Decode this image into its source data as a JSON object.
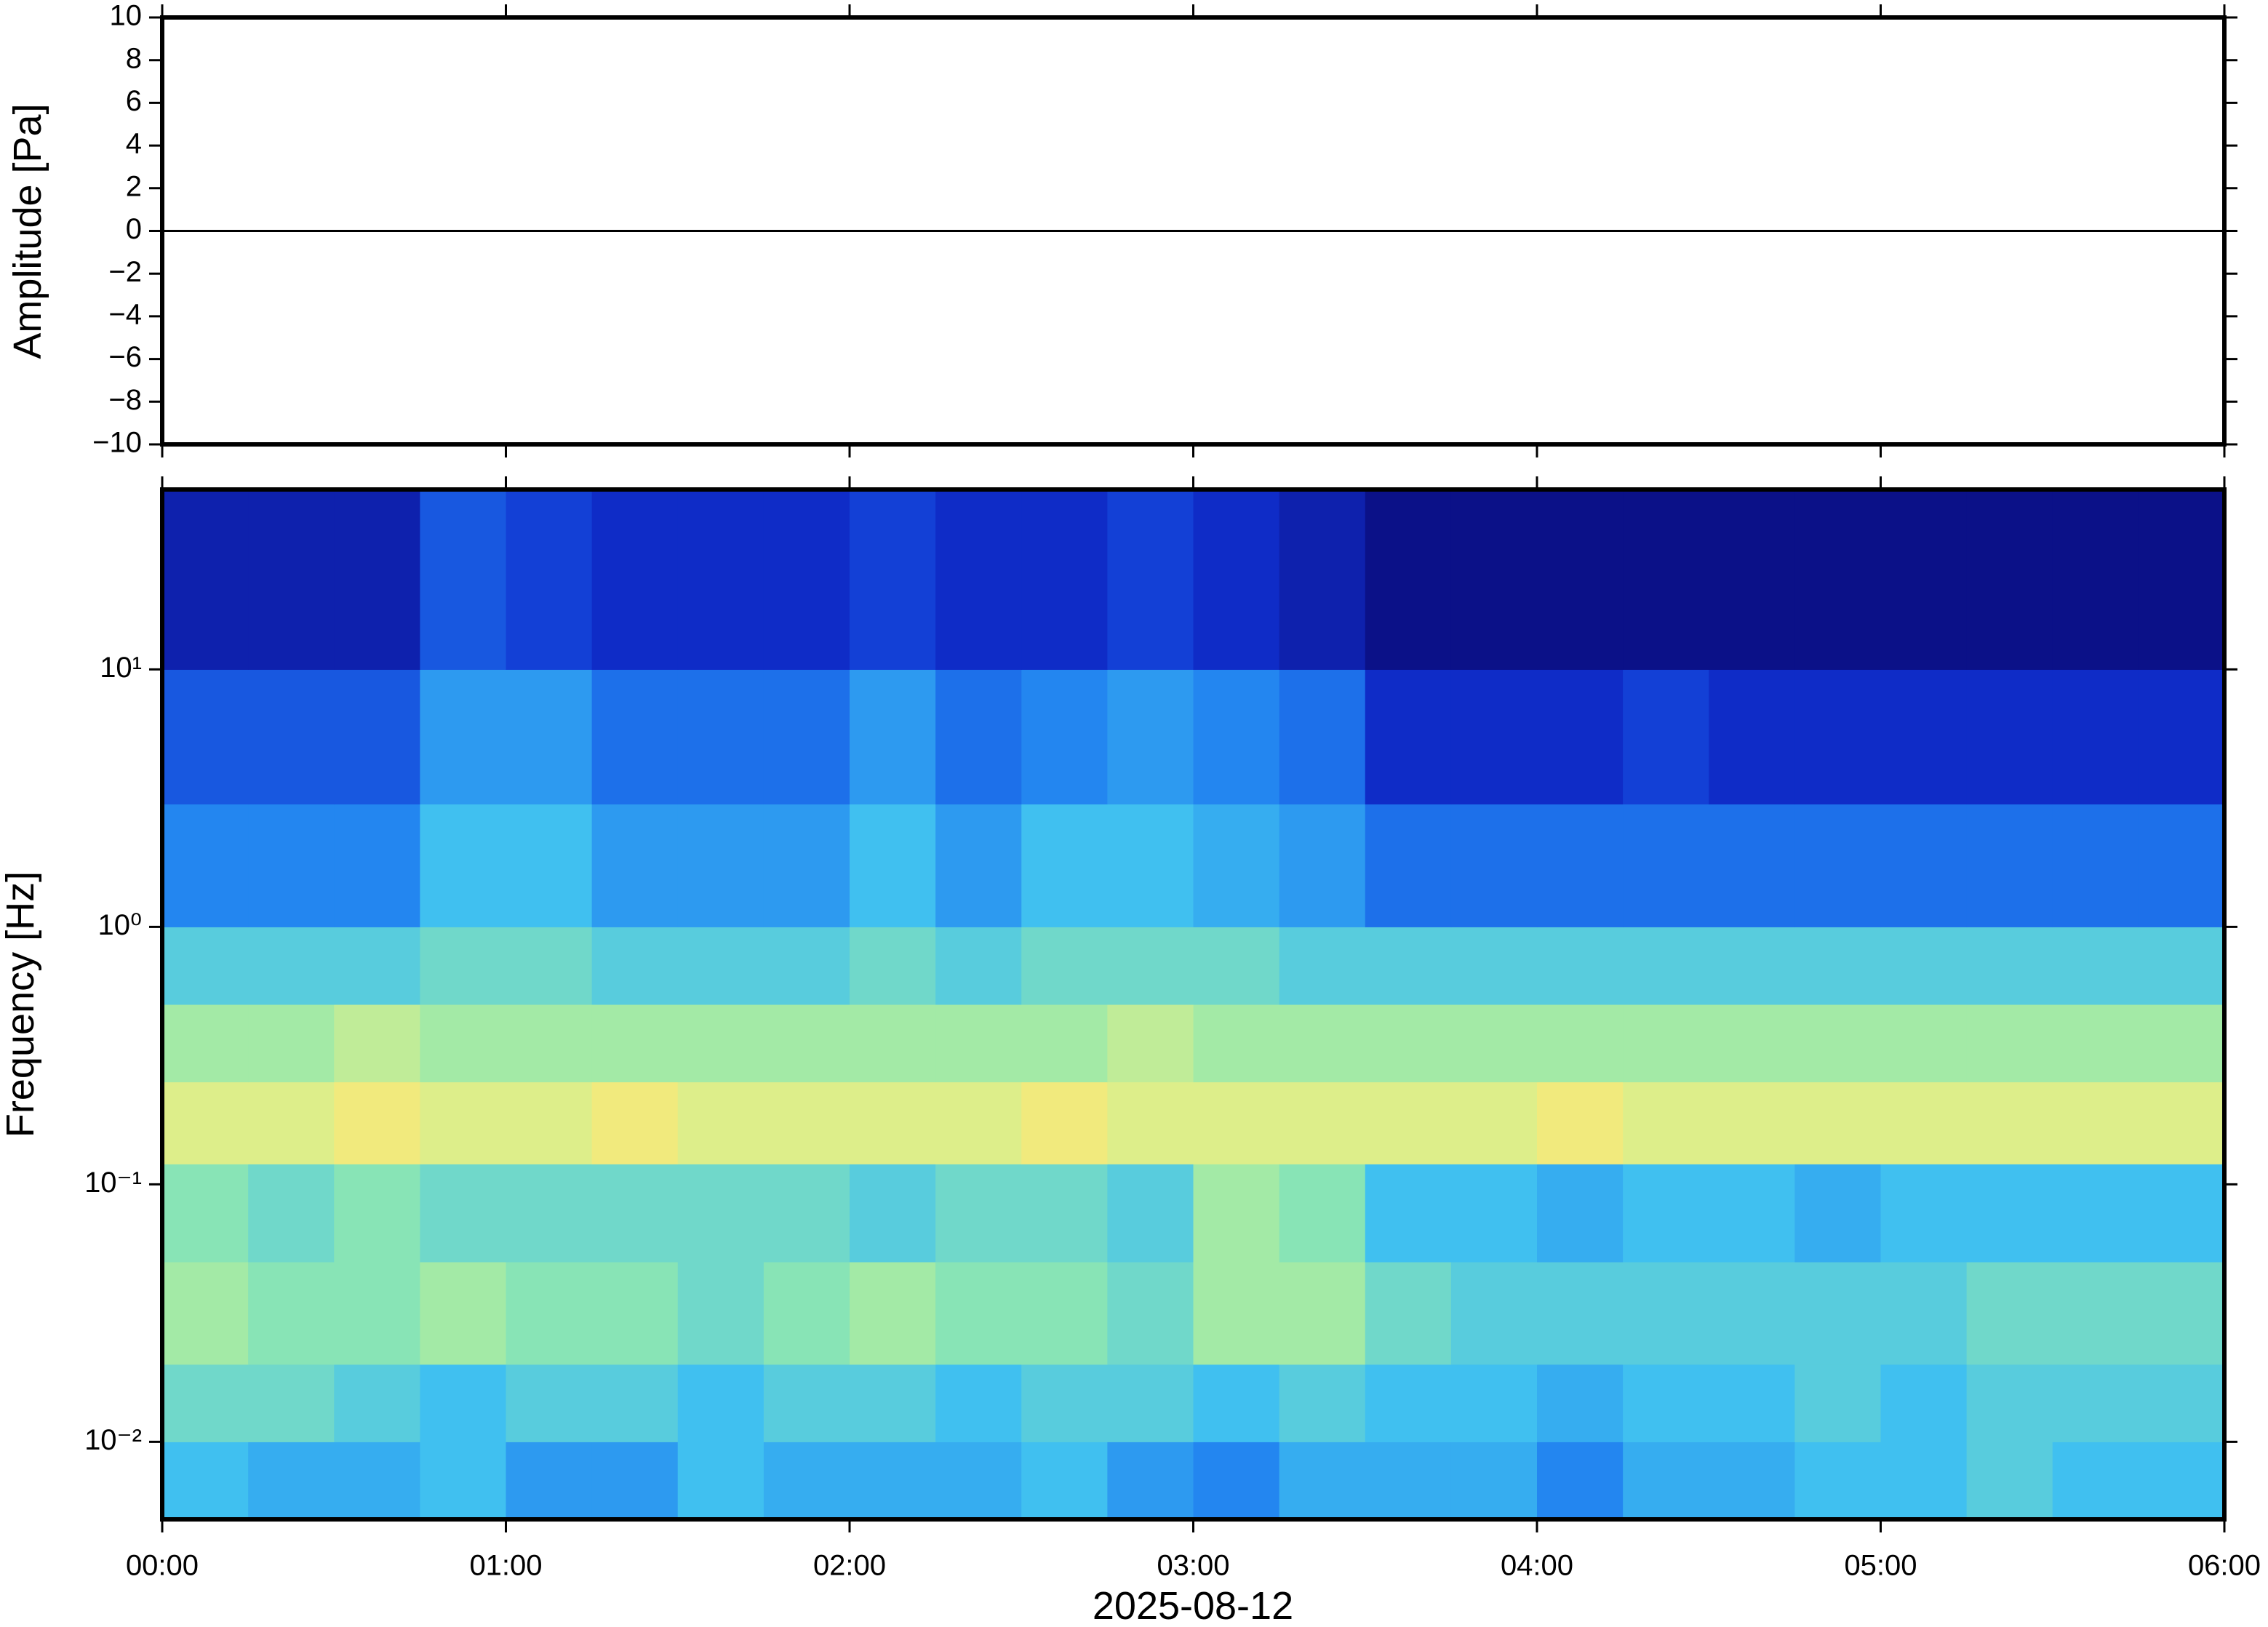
{
  "chart_data": [
    {
      "type": "line",
      "ylabel": "Amplitude [Pa]",
      "xlim": [
        0,
        360
      ],
      "xticks": [
        0,
        60,
        120,
        180,
        240,
        300,
        360
      ],
      "ylim": [
        -10,
        10
      ],
      "yticks": [
        {
          "value": -10,
          "label": "−10"
        },
        {
          "value": -8,
          "label": "−8"
        },
        {
          "value": -6,
          "label": "−6"
        },
        {
          "value": -4,
          "label": "−4"
        },
        {
          "value": -2,
          "label": "−2"
        },
        0,
        2,
        4,
        6,
        8,
        10
      ],
      "series": [
        {
          "color": "#000000",
          "x": [
            0,
            30,
            60,
            90,
            120,
            150,
            180,
            210,
            240,
            270,
            300,
            330,
            360
          ],
          "values": [
            0,
            0,
            0,
            0,
            0,
            0,
            0,
            0,
            0,
            0,
            0,
            0,
            0
          ]
        }
      ]
    },
    {
      "type": "heatmap",
      "ylabel": "Frequency [Hz]",
      "xlabel": "2025-08-12",
      "xlim": [
        0,
        360
      ],
      "xticks": [
        {
          "value": 0,
          "label": "00:00"
        },
        {
          "value": 60,
          "label": "01:00"
        },
        {
          "value": 120,
          "label": "02:00"
        },
        {
          "value": 180,
          "label": "03:00"
        },
        {
          "value": 240,
          "label": "04:00"
        },
        {
          "value": 300,
          "label": "05:00"
        },
        {
          "value": 360,
          "label": "06:00"
        }
      ],
      "ylim": [
        0.005,
        50
      ],
      "yscale": "log",
      "yticks": [
        {
          "value": 0.01,
          "label": "10⁻²"
        },
        {
          "value": 0.1,
          "label": "10⁻¹"
        },
        {
          "value": 1,
          "label": "10⁰"
        },
        {
          "value": 10,
          "label": "10¹"
        }
      ],
      "x_bins": [
        0,
        15,
        30,
        45,
        60,
        75,
        90,
        105,
        120,
        135,
        150,
        165,
        180,
        195,
        210,
        225,
        240,
        255,
        270,
        285,
        300,
        315,
        330,
        345,
        360
      ],
      "y_bins": [
        0.005,
        0.01,
        0.02,
        0.05,
        0.12,
        0.25,
        0.5,
        1,
        3,
        10,
        50
      ],
      "clim": [
        0,
        10
      ],
      "colormap": [
        "#0a0a78",
        "#1030d0",
        "#2080f0",
        "#40c0f0",
        "#90e8b0",
        "#f0f080",
        "#f8b060"
      ],
      "values": [
        [
          5,
          4.5,
          4.5,
          5,
          4,
          4,
          5,
          4.5,
          4.5,
          4.5,
          5,
          4,
          3.5,
          4.5,
          4.5,
          4.5,
          3.5,
          4.5,
          4.5,
          5,
          5,
          5.5,
          5,
          5
        ],
        [
          6,
          6,
          5.5,
          5,
          5.5,
          5.5,
          5,
          5.5,
          5.5,
          5,
          5.5,
          5.5,
          5,
          5.5,
          5,
          5,
          4.5,
          5,
          5,
          5.5,
          5,
          5.5,
          5.5,
          5.5
        ],
        [
          7,
          6.5,
          6.5,
          7,
          6.5,
          6.5,
          6,
          6.5,
          7,
          6.5,
          6.5,
          6,
          7,
          7,
          6,
          5.5,
          5.5,
          5.5,
          5.5,
          5.5,
          5.5,
          6,
          6,
          6
        ],
        [
          6.5,
          6,
          6.5,
          6,
          6,
          6,
          6,
          6,
          5.5,
          6,
          6,
          5.5,
          7,
          6.5,
          5,
          5,
          4.5,
          5,
          5,
          4.5,
          5,
          5,
          5,
          5
        ],
        [
          8,
          8,
          8.5,
          8,
          8,
          8.5,
          8,
          8,
          8,
          8,
          8.5,
          8,
          8,
          8,
          8,
          8,
          8.5,
          8,
          8,
          8,
          8,
          8,
          8,
          8
        ],
        [
          7,
          7,
          7.5,
          7,
          7,
          7,
          7,
          7,
          7,
          7,
          7,
          7.5,
          7,
          7,
          7,
          7,
          7,
          7,
          7,
          7,
          7,
          7,
          7,
          7
        ],
        [
          5.5,
          5.5,
          5.5,
          6,
          6,
          5.5,
          5.5,
          5.5,
          6,
          5.5,
          6,
          6,
          6,
          5.5,
          5.5,
          5.5,
          5.5,
          5.5,
          5.5,
          5.5,
          5.5,
          5.5,
          5.5,
          5.5
        ],
        [
          3.5,
          3.5,
          3.5,
          5,
          5,
          4,
          4,
          4,
          5,
          4,
          5,
          5,
          4.5,
          4,
          3,
          3,
          3,
          3,
          3,
          3,
          3,
          3,
          3,
          3
        ],
        [
          2.5,
          2.5,
          2.5,
          4,
          4,
          3,
          3,
          3,
          4,
          3,
          3.5,
          4,
          3.5,
          3,
          1.5,
          1.5,
          1.5,
          2,
          1.5,
          1.5,
          1.5,
          1.5,
          1.5,
          1.5
        ],
        [
          1,
          1,
          1,
          2.5,
          2,
          1.5,
          1.5,
          1.5,
          2,
          1.5,
          1.5,
          2,
          1.5,
          1,
          0.3,
          0.3,
          0.3,
          0.3,
          0.3,
          0.3,
          0.3,
          0.3,
          0.3,
          0.3
        ]
      ]
    }
  ]
}
